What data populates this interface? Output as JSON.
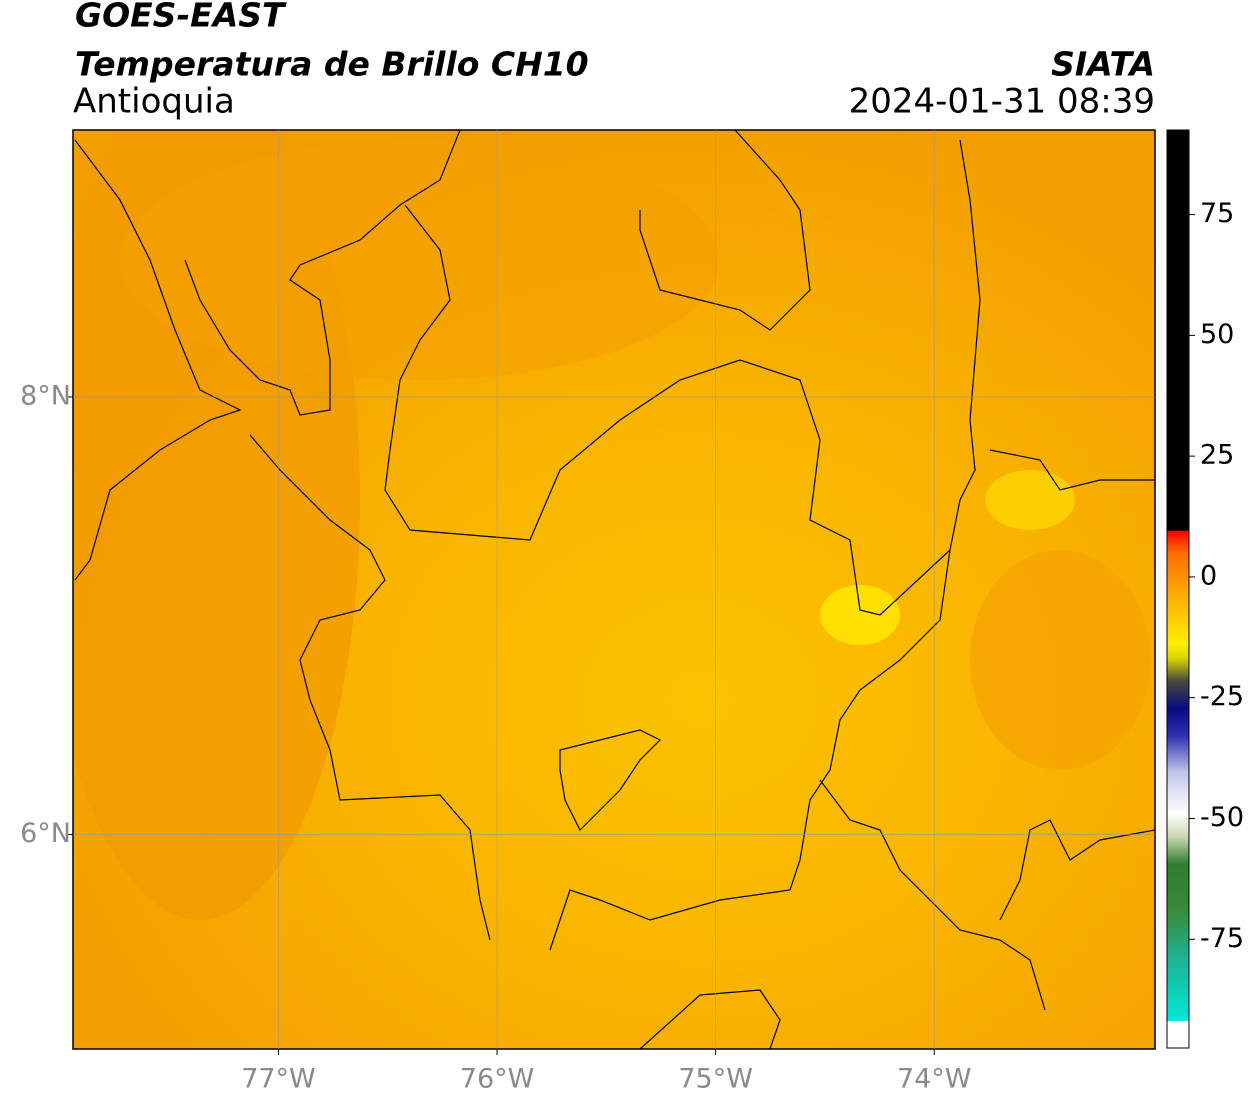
{
  "header": {
    "title": "GOES-EAST",
    "subtitle": "Temperatura de Brillo CH10",
    "region": "Antioquia",
    "source": "SIATA",
    "datetime": "2024-01-31 08:39"
  },
  "map": {
    "xlim": [
      -77.94,
      -72.99
    ],
    "ylim": [
      5.02,
      9.22
    ],
    "xticks": [
      {
        "value": -77,
        "label": "77°W"
      },
      {
        "value": -76,
        "label": "76°W"
      },
      {
        "value": -75,
        "label": "75°W"
      },
      {
        "value": -74,
        "label": "74°W"
      }
    ],
    "yticks": [
      {
        "value": 8,
        "label": "8°N"
      },
      {
        "value": 6,
        "label": "6°N"
      }
    ],
    "grid": true
  },
  "colorbar": {
    "lim": [
      -97.5,
      92.5
    ],
    "ticks": [
      75,
      50,
      25,
      0,
      -25,
      -50,
      -75
    ]
  }
}
